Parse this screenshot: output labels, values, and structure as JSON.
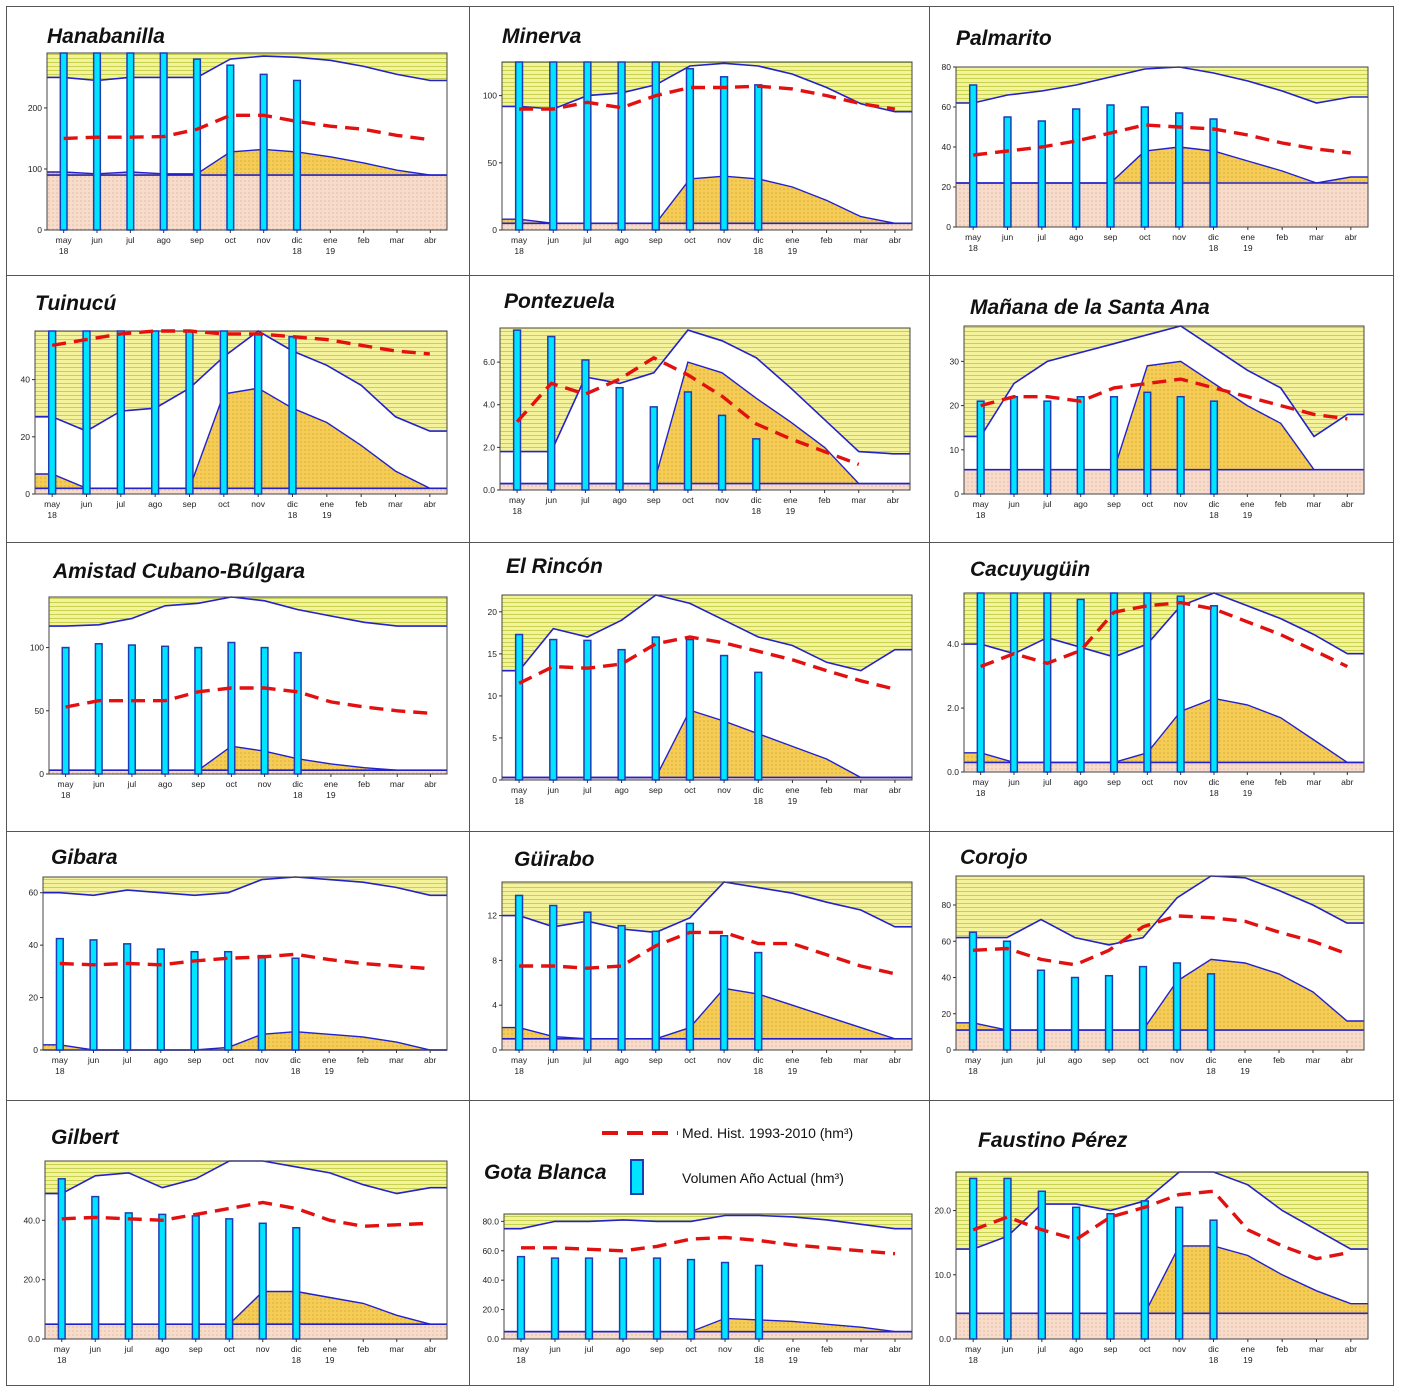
{
  "legend": {
    "hist_label": "Med. Hist. 1993-2010 (hm³)",
    "bar_label": "Volumen Año Actual (hm³)"
  },
  "colors": {
    "zone_top": "#f4f29a",
    "zone_top_lines": "#b9c93c",
    "zone_area": "#f5cc55",
    "zone_bottom": "#f8dccb",
    "bar_fill": "#00e5ff",
    "bar_edge": "#1e3cb4",
    "hist_line": "#e31010",
    "band_line": "#2222cc"
  },
  "months": [
    "may",
    "jun",
    "jul",
    "ago",
    "sep",
    "oct",
    "nov",
    "dic",
    "ene",
    "feb",
    "mar",
    "abr"
  ],
  "year_labels": {
    "may": "18",
    "dic": "18",
    "ene": "19"
  },
  "chart_data": [
    {
      "type": "bar",
      "title": "Hanabanilla",
      "yticks": [
        "0",
        "100",
        "200"
      ],
      "ylim": [
        0,
        290
      ],
      "upper": [
        250,
        245,
        250,
        250,
        250,
        280,
        285,
        283,
        278,
        268,
        255,
        245
      ],
      "lower": [
        95,
        92,
        95,
        92,
        92,
        128,
        132,
        128,
        120,
        110,
        98,
        90
      ],
      "dead": 90,
      "hist": [
        150,
        152,
        152,
        153,
        165,
        188,
        188,
        178,
        170,
        165,
        155,
        148
      ],
      "bars": [
        290,
        290,
        290,
        290,
        280,
        270,
        255,
        245
      ]
    },
    {
      "type": "bar",
      "title": "Minerva",
      "yticks": [
        "0",
        "50",
        "100"
      ],
      "ylim": [
        0,
        125
      ],
      "upper": [
        92,
        90,
        100,
        102,
        108,
        122,
        124,
        122,
        116,
        106,
        94,
        88
      ],
      "lower": [
        8,
        5,
        5,
        5,
        5,
        38,
        40,
        38,
        32,
        22,
        10,
        5
      ],
      "dead": 5,
      "hist": [
        90,
        90,
        95,
        91,
        100,
        106,
        106,
        107,
        105,
        100,
        94,
        90
      ],
      "bars": [
        125,
        125,
        125,
        125,
        125,
        120,
        114,
        108
      ]
    },
    {
      "type": "bar",
      "title": "Palmarito",
      "yticks": [
        "0",
        "20",
        "40",
        "60",
        "80"
      ],
      "ylim": [
        0,
        80
      ],
      "upper": [
        62,
        66,
        68,
        71,
        75,
        79,
        80,
        77,
        73,
        68,
        62,
        65
      ],
      "lower": [
        22,
        22,
        22,
        22,
        22,
        38,
        40,
        38,
        33,
        28,
        22,
        25
      ],
      "dead": 22,
      "hist": [
        36,
        38,
        40,
        43,
        47,
        51,
        50,
        49,
        46,
        42,
        39,
        37
      ],
      "bars": [
        71,
        55,
        53,
        59,
        61,
        60,
        57,
        54
      ]
    },
    {
      "type": "bar",
      "title": "Tuinucú",
      "yticks": [
        "0",
        "20",
        "40"
      ],
      "ylim": [
        0,
        57
      ],
      "upper": [
        27,
        22,
        29,
        30,
        37,
        48,
        57,
        50,
        45,
        38,
        27,
        22
      ],
      "lower": [
        7,
        2,
        2,
        2,
        2,
        35,
        37,
        30,
        25,
        17,
        8,
        2
      ],
      "dead": 2,
      "hist": [
        52,
        54,
        56,
        57,
        57,
        56,
        56,
        55,
        54,
        52,
        50,
        49
      ],
      "bars": [
        57,
        57,
        57,
        57,
        57,
        57,
        56,
        55
      ]
    },
    {
      "type": "bar",
      "title": "Pontezuela",
      "yticks": [
        "0.0",
        "2.0",
        "4.0",
        "6.0"
      ],
      "ylim": [
        0,
        7.6
      ],
      "upper": [
        1.8,
        1.8,
        5.3,
        5.0,
        5.5,
        7.5,
        7.0,
        6.2,
        4.8,
        3.3,
        1.8,
        1.7
      ],
      "lower": [
        0.3,
        0.3,
        0.3,
        0.3,
        0.3,
        6.0,
        5.5,
        4.3,
        3.2,
        2.0,
        0.3,
        0.3
      ],
      "dead": 0.3,
      "hist": [
        3.2,
        5.0,
        4.5,
        5.2,
        6.2,
        5.4,
        4.4,
        3.1,
        2.4,
        1.8,
        1.2,
        null
      ],
      "bars": [
        7.5,
        7.2,
        6.1,
        4.8,
        3.9,
        4.6,
        3.5,
        2.4
      ]
    },
    {
      "type": "bar",
      "title": "Mañana de la Santa Ana",
      "yticks": [
        "0",
        "10",
        "20",
        "30"
      ],
      "ylim": [
        0,
        38
      ],
      "upper": [
        13,
        25,
        30,
        32,
        34,
        36,
        38,
        33,
        28,
        24,
        13,
        18
      ],
      "lower": [
        5.5,
        5.5,
        5.5,
        5.5,
        5.5,
        29,
        30,
        25,
        20,
        16,
        5.5,
        5.5
      ],
      "dead": 5.5,
      "hist": [
        20,
        22,
        22,
        21,
        24,
        25,
        26,
        24,
        22,
        20,
        18,
        17
      ],
      "bars": [
        21,
        22,
        21,
        22,
        22,
        23,
        22,
        21
      ]
    },
    {
      "type": "bar",
      "title": "Amistad Cubano-Búlgara",
      "yticks": [
        "0",
        "50",
        "100"
      ],
      "ylim": [
        0,
        140
      ],
      "upper": [
        117,
        118,
        123,
        133,
        135,
        140,
        137,
        130,
        125,
        120,
        117,
        117
      ],
      "lower": [
        3,
        3,
        3,
        3,
        3,
        22,
        18,
        12,
        8,
        5,
        3,
        3
      ],
      "dead": 3,
      "hist": [
        53,
        58,
        58,
        58,
        65,
        68,
        68,
        65,
        57,
        53,
        50,
        48
      ],
      "bars": [
        100,
        103,
        102,
        101,
        100,
        104,
        100,
        96
      ]
    },
    {
      "type": "bar",
      "title": "El Rincón",
      "yticks": [
        "0",
        "5",
        "10",
        "15",
        "20"
      ],
      "ylim": [
        0,
        22
      ],
      "upper": [
        13,
        18,
        17,
        19,
        22,
        21,
        19,
        17,
        16,
        14,
        13,
        15.5
      ],
      "lower": [
        0.3,
        0.3,
        0.3,
        0.3,
        0.3,
        8.3,
        7,
        5.5,
        4,
        2.5,
        0.3,
        0.3
      ],
      "dead": 0.3,
      "hist": [
        11.5,
        13.5,
        13.3,
        13.8,
        16.2,
        17,
        16.3,
        15.3,
        14.3,
        13,
        11.8,
        10.8
      ],
      "bars": [
        17.3,
        16.7,
        16.6,
        15.5,
        17,
        16.7,
        14.8,
        12.8
      ]
    },
    {
      "type": "bar",
      "title": "Cacuyugüin",
      "yticks": [
        "0.0",
        "2.0",
        "4.0"
      ],
      "ylim": [
        0,
        5.6
      ],
      "upper": [
        4.0,
        3.7,
        4.2,
        3.9,
        3.6,
        4.0,
        5.2,
        5.6,
        5.2,
        4.8,
        4.3,
        3.7
      ],
      "lower": [
        0.6,
        0.3,
        0.3,
        0.3,
        0.3,
        0.6,
        1.9,
        2.3,
        2.1,
        1.7,
        1.0,
        0.3
      ],
      "dead": 0.3,
      "hist": [
        3.3,
        3.7,
        3.4,
        3.8,
        5.0,
        5.2,
        5.3,
        5.1,
        4.7,
        4.3,
        3.8,
        3.3
      ],
      "bars": [
        5.6,
        5.6,
        5.6,
        5.4,
        5.6,
        5.6,
        5.5,
        5.2
      ]
    },
    {
      "type": "bar",
      "title": "Gibara",
      "yticks": [
        "0",
        "20",
        "40",
        "60"
      ],
      "ylim": [
        0,
        66
      ],
      "upper": [
        60,
        59,
        61,
        60,
        59,
        60,
        65,
        66,
        65,
        64,
        62,
        59
      ],
      "lower": [
        2,
        0,
        0,
        0,
        0,
        1,
        6,
        7,
        6,
        5,
        3,
        0
      ],
      "dead": 0,
      "hist": [
        33,
        32.5,
        33,
        32.5,
        34,
        35,
        35.5,
        36.5,
        34.5,
        33,
        32,
        31
      ],
      "bars": [
        42.5,
        42,
        40.5,
        38.5,
        37.5,
        37.5,
        36,
        35
      ]
    },
    {
      "type": "bar",
      "title": "Güirabo",
      "yticks": [
        "0",
        "4",
        "8",
        "12"
      ],
      "ylim": [
        0,
        15
      ],
      "upper": [
        12,
        11,
        11.5,
        10.8,
        10.5,
        11.8,
        15,
        14.5,
        14,
        13.2,
        12.5,
        11
      ],
      "lower": [
        2,
        1.2,
        1,
        1,
        1,
        2,
        5.5,
        5,
        4,
        3,
        2,
        1
      ],
      "dead": 1,
      "hist": [
        7.5,
        7.5,
        7.3,
        7.5,
        9.3,
        10.5,
        10.5,
        9.5,
        9.5,
        8.5,
        7.5,
        6.8
      ],
      "bars": [
        13.8,
        12.9,
        12.3,
        11.1,
        10.6,
        11.3,
        10.2,
        8.7
      ]
    },
    {
      "type": "bar",
      "title": "Corojo",
      "yticks": [
        "0",
        "20",
        "40",
        "60",
        "80"
      ],
      "ylim": [
        0,
        96
      ],
      "upper": [
        62,
        62,
        72,
        62,
        58,
        62,
        84,
        96,
        95,
        88,
        80,
        70
      ],
      "lower": [
        15,
        11,
        11,
        11,
        11,
        11,
        38,
        50,
        48,
        42,
        32,
        16
      ],
      "dead": 11,
      "hist": [
        55,
        56,
        50,
        47,
        55,
        68,
        74,
        73,
        71,
        65,
        60,
        53
      ],
      "bars": [
        65,
        60,
        44,
        40,
        41,
        46,
        48,
        42
      ]
    },
    {
      "type": "bar",
      "title": "Gilbert",
      "yticks": [
        "0.0",
        "20.0",
        "40.0"
      ],
      "ylim": [
        0,
        60
      ],
      "upper": [
        49,
        55,
        56,
        51,
        54,
        60,
        60,
        58,
        56,
        52,
        49,
        51
      ],
      "lower": [
        5,
        5,
        5,
        5,
        5,
        5,
        16,
        16,
        14,
        12,
        8,
        5
      ],
      "dead": 5,
      "hist": [
        40.5,
        41,
        40.5,
        40,
        42,
        44,
        46,
        44,
        40,
        38,
        38.5,
        39
      ],
      "bars": [
        54,
        48,
        42.5,
        42,
        41.5,
        40.5,
        39,
        37.5
      ]
    },
    {
      "type": "bar",
      "title": "Gota Blanca",
      "yticks": [
        "0.0",
        "20.0",
        "40.0",
        "60.0",
        "80.0"
      ],
      "ylim": [
        0,
        85
      ],
      "upper": [
        75,
        80,
        80,
        81,
        80,
        80,
        84,
        84,
        83,
        81,
        78,
        75
      ],
      "lower": [
        5,
        5,
        5,
        5,
        5,
        5,
        14,
        13,
        12,
        10,
        8,
        5
      ],
      "dead": 5,
      "hist": [
        62,
        62,
        61,
        60,
        63,
        68,
        69,
        67,
        64,
        62,
        60,
        58
      ],
      "bars": [
        56,
        55,
        55,
        55,
        55,
        54,
        52,
        50
      ]
    },
    {
      "type": "bar",
      "title": "Faustino Pérez",
      "yticks": [
        "0.0",
        "10.0",
        "20.0"
      ],
      "ylim": [
        0,
        26
      ],
      "upper": [
        14,
        16,
        21,
        21,
        20,
        21.5,
        26,
        26,
        24,
        20,
        17,
        14
      ],
      "lower": [
        4,
        4,
        4,
        4,
        4,
        4,
        14.5,
        14.5,
        13,
        10,
        7.5,
        5.5
      ],
      "dead": 4,
      "hist": [
        17,
        19,
        17,
        15.5,
        19,
        20.5,
        22.5,
        23,
        17,
        14.5,
        12.5,
        13.5
      ],
      "bars": [
        25,
        25,
        23,
        20.5,
        19.5,
        21.5,
        20.5,
        18.5
      ]
    }
  ]
}
